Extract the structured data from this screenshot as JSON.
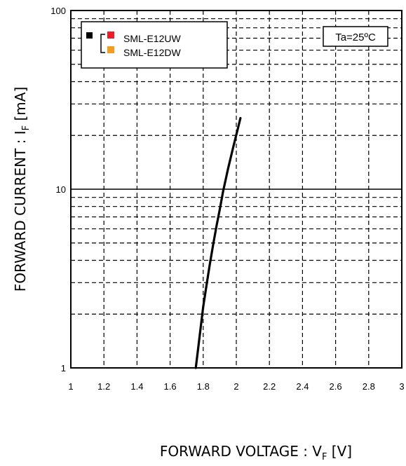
{
  "chart_data": {
    "type": "line",
    "xlabel": "FORWARD VOLTAGE : V",
    "xlabel_sub": "F",
    "xlabel_unit": " [V]",
    "ylabel": "FORWARD CURRENT : I",
    "ylabel_sub": "F",
    "ylabel_unit": " [mA]",
    "xlim": [
      1,
      3
    ],
    "ylim": [
      1,
      100
    ],
    "yscale": "log",
    "grid": true,
    "x_ticks": [
      "1",
      "1.2",
      "1.4",
      "1.6",
      "1.8",
      "2",
      "2.2",
      "2.4",
      "2.6",
      "2.8",
      "3"
    ],
    "y_ticks": [
      "1",
      "10",
      "100"
    ],
    "annotation": "Ta=25ºC",
    "legend": {
      "placement": "top-left",
      "entries": [
        {
          "name": "SML-E12UW",
          "color": "#ee1c25"
        },
        {
          "name": "SML-E12DW",
          "color": "#f39c1f"
        }
      ],
      "group_marker_color": "#000000"
    },
    "series": [
      {
        "color": "#000000",
        "x": [
          1.755,
          1.78,
          1.8,
          1.82,
          1.84,
          1.86,
          1.88,
          1.9,
          1.92,
          1.95,
          1.98,
          2.01,
          2.025
        ],
        "y": [
          1,
          1.55,
          2.2,
          2.9,
          3.8,
          4.9,
          6.2,
          7.7,
          9.7,
          13.0,
          17.0,
          22.0,
          25.0
        ]
      }
    ]
  }
}
